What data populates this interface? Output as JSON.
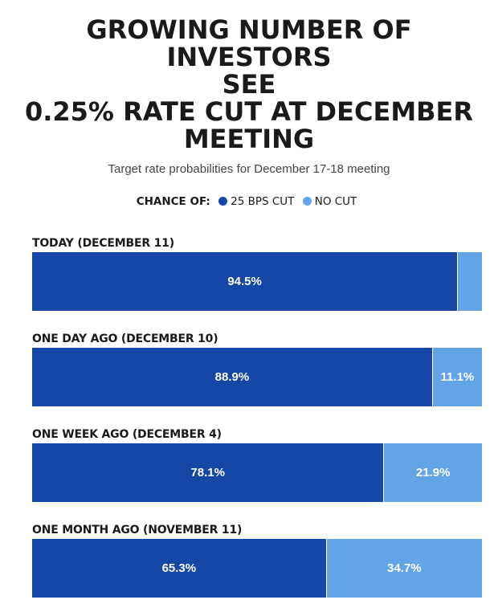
{
  "header": {
    "title_lines": [
      "GROWING NUMBER OF INVESTORS",
      "SEE",
      "0.25% RATE CUT AT DECEMBER",
      "MEETING"
    ],
    "subtitle": "Target rate probabilities for December 17-18 meeting"
  },
  "legend": {
    "lead": "CHANCE OF:",
    "entries": [
      {
        "label": "25 BPS CUT",
        "color": "#1747a6"
      },
      {
        "label": "NO CUT",
        "color": "#63a4e6"
      }
    ]
  },
  "chart_data": {
    "type": "bar",
    "orientation": "horizontal",
    "stacked": true,
    "title": "GROWING NUMBER OF INVESTORS SEE 0.25% RATE CUT AT DECEMBER MEETING",
    "subtitle": "Target rate probabilities for December 17-18 meeting",
    "categories": [
      "TODAY (DECEMBER 11)",
      "ONE DAY AGO (DECEMBER 10)",
      "ONE WEEK AGO (DECEMBER 4)",
      "ONE MONTH AGO (NOVEMBER 11)"
    ],
    "series": [
      {
        "name": "25 BPS CUT",
        "color": "#1747a6",
        "values": [
          94.5,
          88.9,
          78.1,
          65.3
        ],
        "labels": [
          "94.5%",
          "88.9%",
          "78.1%",
          "65.3%"
        ]
      },
      {
        "name": "NO CUT",
        "color": "#63a4e6",
        "values": [
          5.5,
          11.1,
          21.9,
          34.7
        ],
        "labels": [
          "",
          "11.1%",
          "21.9%",
          "34.7%"
        ]
      }
    ],
    "xlim": [
      0,
      100
    ],
    "grid": false,
    "legend_position": "top-center"
  }
}
